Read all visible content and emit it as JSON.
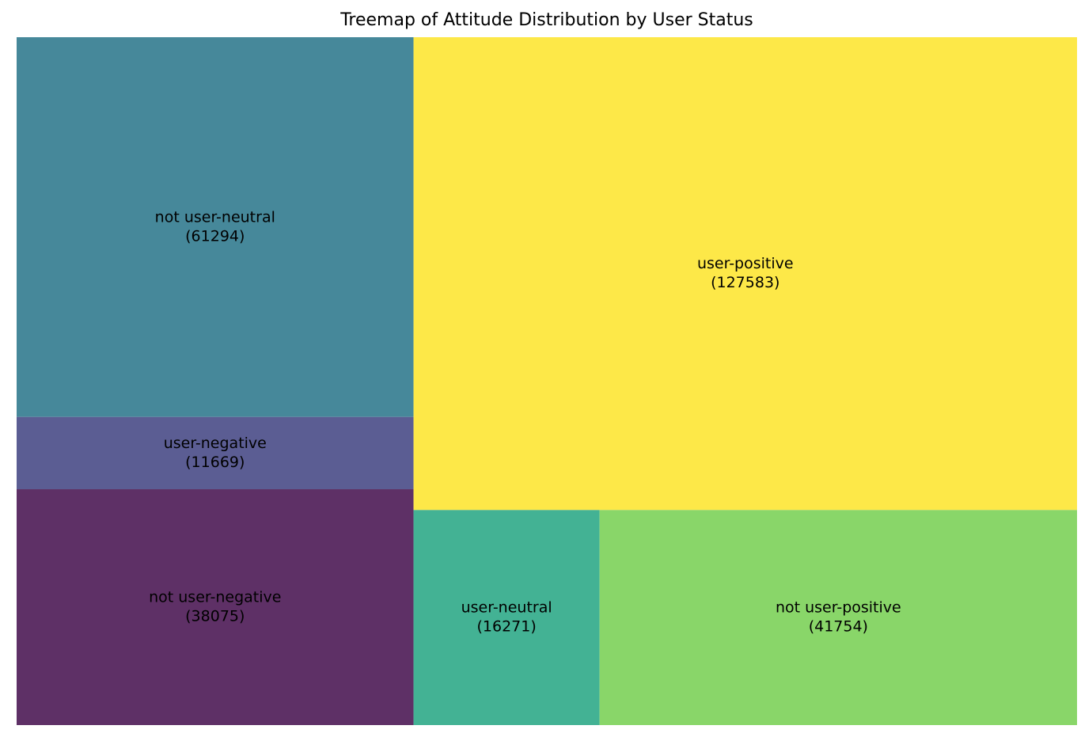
{
  "chart_data": {
    "type": "treemap",
    "title": "Treemap of Attitude Distribution by User Status",
    "items": [
      {
        "label": "not user-neutral",
        "value": 61294,
        "value_text": "(61294)",
        "color": "#46889a"
      },
      {
        "label": "user-negative",
        "value": 11669,
        "value_text": "(11669)",
        "color": "#5b5d93"
      },
      {
        "label": "not user-negative",
        "value": 38075,
        "value_text": "(38075)",
        "color": "#5e3066"
      },
      {
        "label": "user-positive",
        "value": 127583,
        "value_text": "(127583)",
        "color": "#fde848"
      },
      {
        "label": "user-neutral",
        "value": 16271,
        "value_text": "(16271)",
        "color": "#43b294"
      },
      {
        "label": "not user-positive",
        "value": 41754,
        "value_text": "(41754)",
        "color": "#89d669"
      }
    ],
    "axes": "off"
  }
}
